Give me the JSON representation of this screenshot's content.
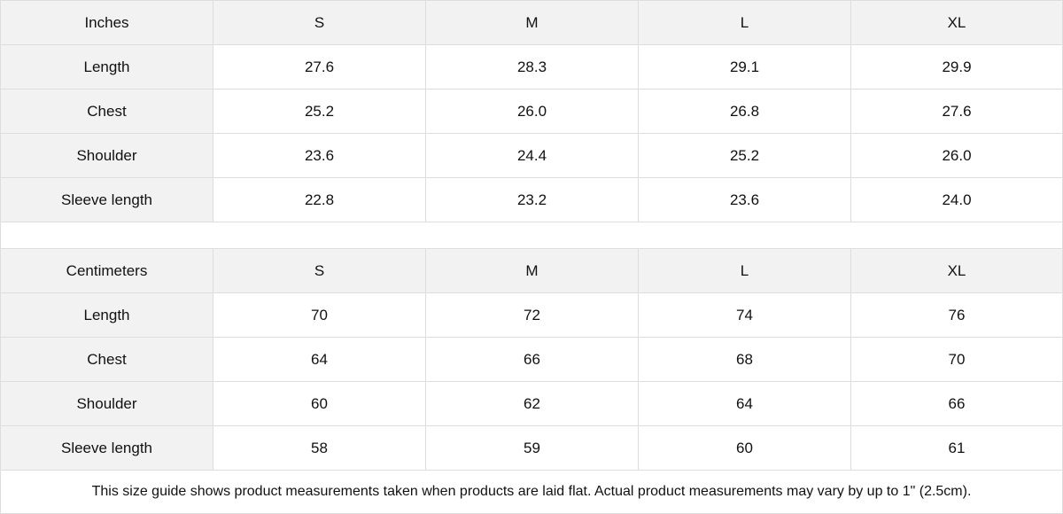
{
  "tables": [
    {
      "unit": "Inches",
      "sizes": [
        "S",
        "M",
        "L",
        "XL"
      ],
      "rows": [
        {
          "label": "Length",
          "values": [
            "27.6",
            "28.3",
            "29.1",
            "29.9"
          ]
        },
        {
          "label": "Chest",
          "values": [
            "25.2",
            "26.0",
            "26.8",
            "27.6"
          ]
        },
        {
          "label": "Shoulder",
          "values": [
            "23.6",
            "24.4",
            "25.2",
            "26.0"
          ]
        },
        {
          "label": "Sleeve length",
          "values": [
            "22.8",
            "23.2",
            "23.6",
            "24.0"
          ]
        }
      ]
    },
    {
      "unit": "Centimeters",
      "sizes": [
        "S",
        "M",
        "L",
        "XL"
      ],
      "rows": [
        {
          "label": "Length",
          "values": [
            "70",
            "72",
            "74",
            "76"
          ]
        },
        {
          "label": "Chest",
          "values": [
            "64",
            "66",
            "68",
            "70"
          ]
        },
        {
          "label": "Shoulder",
          "values": [
            "60",
            "62",
            "64",
            "66"
          ]
        },
        {
          "label": "Sleeve length",
          "values": [
            "58",
            "59",
            "60",
            "61"
          ]
        }
      ]
    }
  ],
  "note": "This size guide shows product measurements taken when products are laid flat.  Actual product measurements may vary by up to 1\" (2.5cm).",
  "colors": {
    "header_bg": "#f2f2f2",
    "border": "#dddddd"
  }
}
